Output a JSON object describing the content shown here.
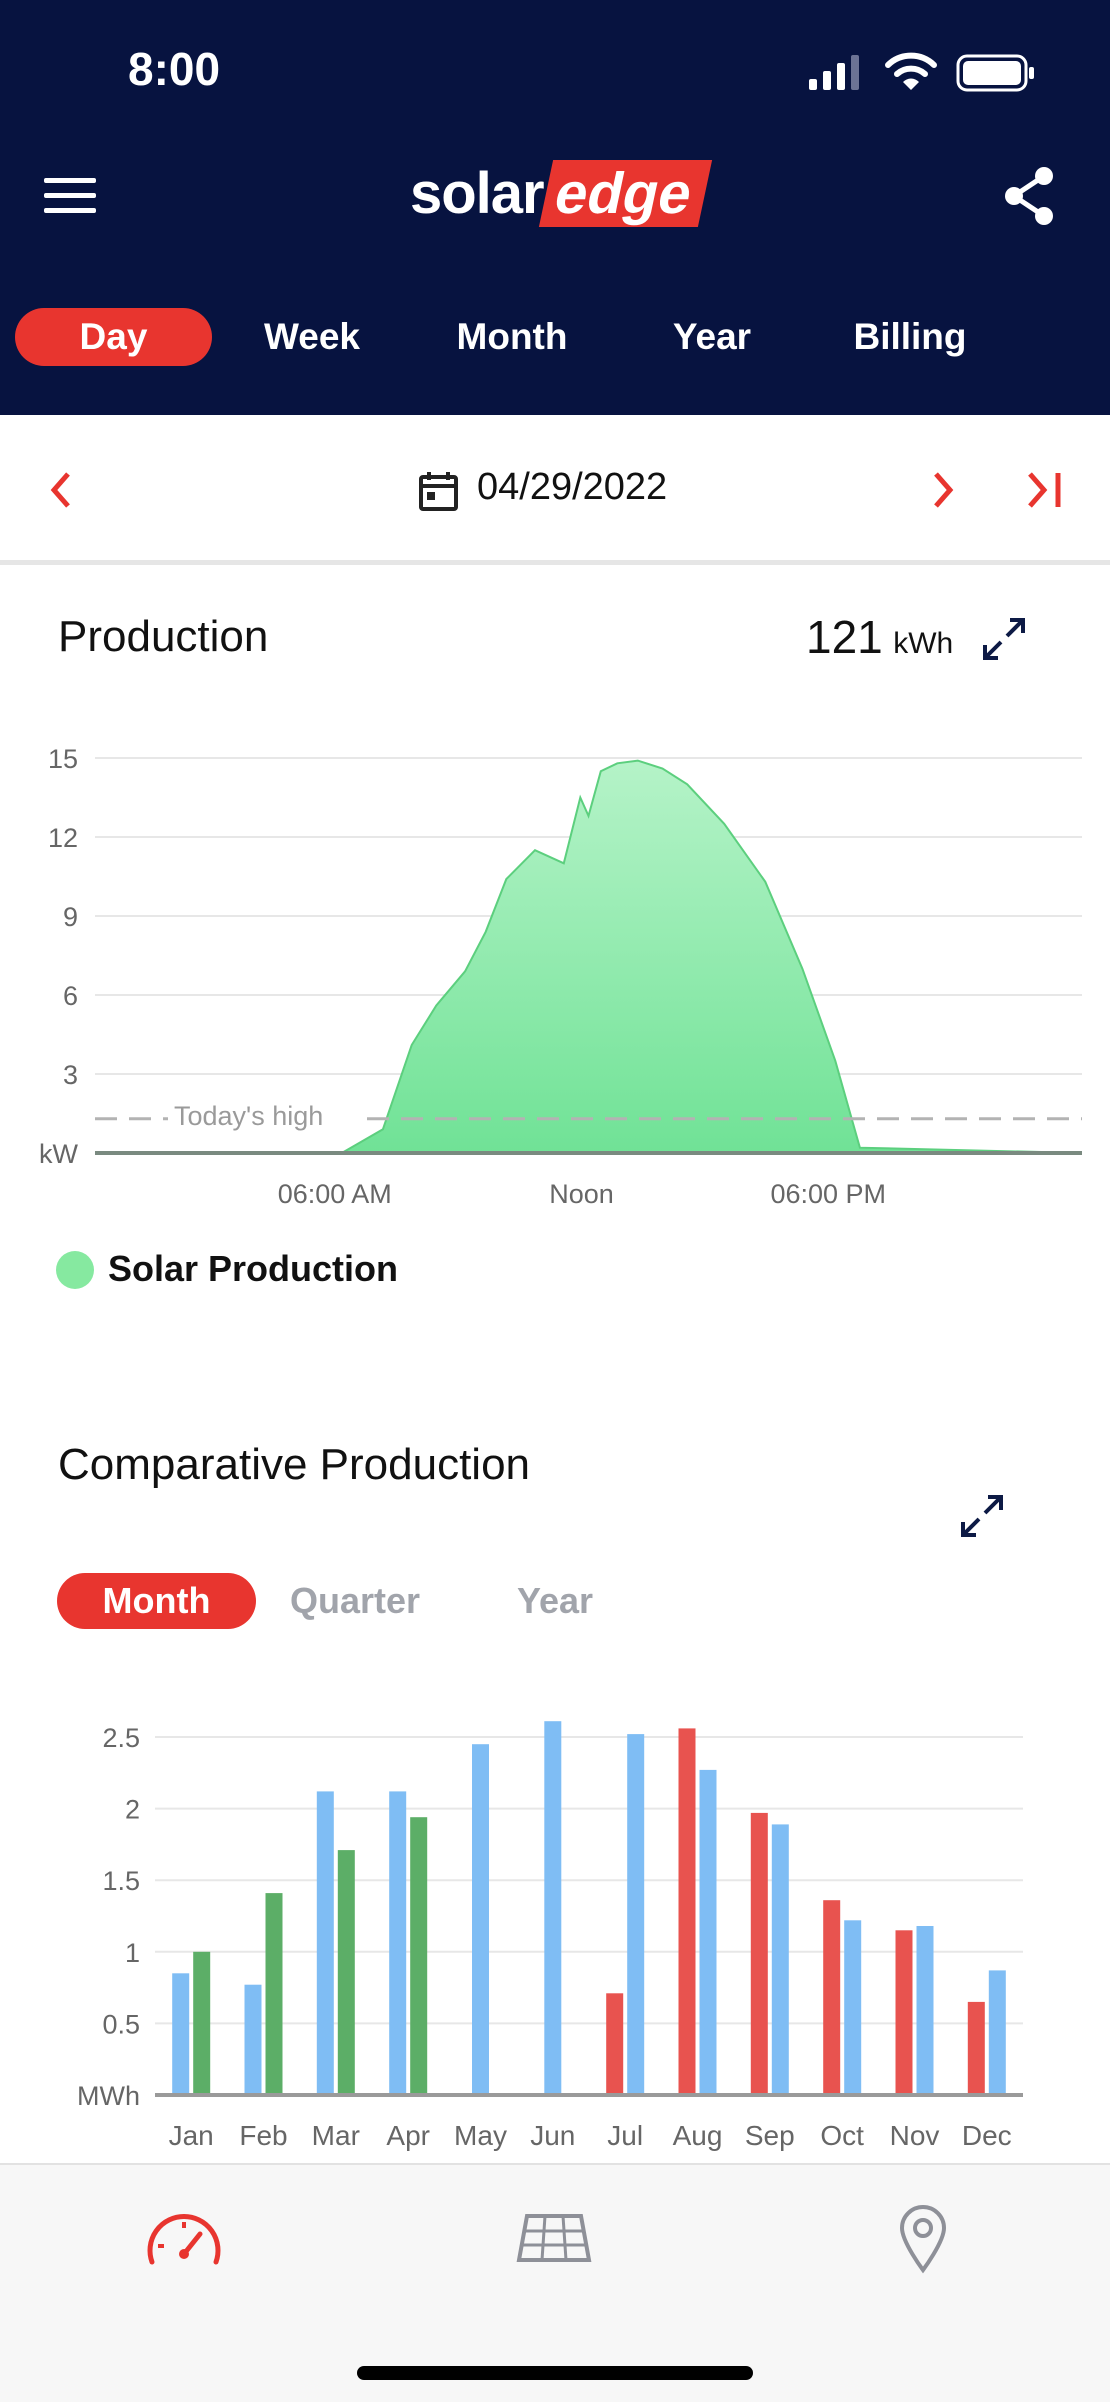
{
  "status_bar": {
    "time": "8:00"
  },
  "header": {
    "logo": {
      "part1": "solar",
      "part2": "edge"
    },
    "menu_icon": "hamburger-menu-icon",
    "share_icon": "share-icon"
  },
  "period_tabs": [
    {
      "label": "Day",
      "active": true
    },
    {
      "label": "Week",
      "active": false
    },
    {
      "label": "Month",
      "active": false
    },
    {
      "label": "Year",
      "active": false
    },
    {
      "label": "Billing",
      "active": false
    }
  ],
  "date_bar": {
    "date": "04/29/2022"
  },
  "production": {
    "title": "Production",
    "total_value": "121",
    "total_unit": "kWh",
    "legend_label": "Solar Production",
    "todays_high_label": "Today's high"
  },
  "comparative": {
    "title": "Comparative Production",
    "tabs": [
      {
        "label": "Month",
        "active": true
      },
      {
        "label": "Quarter",
        "active": false
      },
      {
        "label": "Year",
        "active": false
      }
    ]
  },
  "colors": {
    "header_bg": "#071340",
    "accent_red": "#e8352f",
    "solar_green": "#86e9a0",
    "bar_blue": "#7fbdf4",
    "bar_green": "#5cae67",
    "bar_red": "#e8534f"
  },
  "chart_data": [
    {
      "type": "area",
      "y_unit_label": "kW",
      "yticks": [
        3,
        6,
        9,
        12,
        15
      ],
      "ylim": [
        0,
        15.5
      ],
      "x_tick_labels": [
        "06:00 AM",
        "Noon",
        "06:00 PM"
      ],
      "series": [
        {
          "name": "Solar Production",
          "x_hours": [
            0,
            6,
            7,
            7.7,
            8.3,
            9,
            9.5,
            10,
            10.7,
            11.4,
            11.8,
            12,
            12.3,
            12.7,
            13.2,
            13.8,
            14.4,
            15.3,
            16.3,
            17.2,
            18,
            18.6,
            24
          ],
          "values": [
            0,
            0,
            0.9,
            4.1,
            5.6,
            6.9,
            8.4,
            10.4,
            11.5,
            11.0,
            13.5,
            12.8,
            14.5,
            14.8,
            14.9,
            14.6,
            14.0,
            12.5,
            10.3,
            7.0,
            3.5,
            0.2,
            0
          ]
        }
      ],
      "todays_high_value": 1.3,
      "grid": true
    },
    {
      "type": "bar",
      "y_unit_label": "MWh",
      "yticks": [
        0.5,
        1,
        1.5,
        2,
        2.5
      ],
      "ylim": [
        0,
        2.6
      ],
      "categories": [
        "Jan",
        "Feb",
        "Mar",
        "Apr",
        "May",
        "Jun",
        "Jul",
        "Aug",
        "Sep",
        "Oct",
        "Nov",
        "Dec"
      ],
      "series": [
        {
          "color": "#e8534f",
          "values": [
            null,
            null,
            null,
            null,
            null,
            null,
            0.71,
            2.56,
            1.97,
            1.36,
            1.15,
            0.65
          ]
        },
        {
          "color": "#7fbdf4",
          "values": [
            0.85,
            0.77,
            2.12,
            2.12,
            2.45,
            2.61,
            2.52,
            2.27,
            1.89,
            1.22,
            1.18,
            0.87
          ]
        },
        {
          "color": "#5cae67",
          "values": [
            1.0,
            1.41,
            1.71,
            1.94,
            null,
            null,
            null,
            null,
            null,
            null,
            null,
            null
          ]
        }
      ],
      "grid": true
    }
  ],
  "bottom_nav": [
    {
      "icon": "dashboard-gauge-icon",
      "active": true
    },
    {
      "icon": "solar-panel-layout-icon",
      "active": false
    },
    {
      "icon": "location-pin-icon",
      "active": false
    }
  ]
}
